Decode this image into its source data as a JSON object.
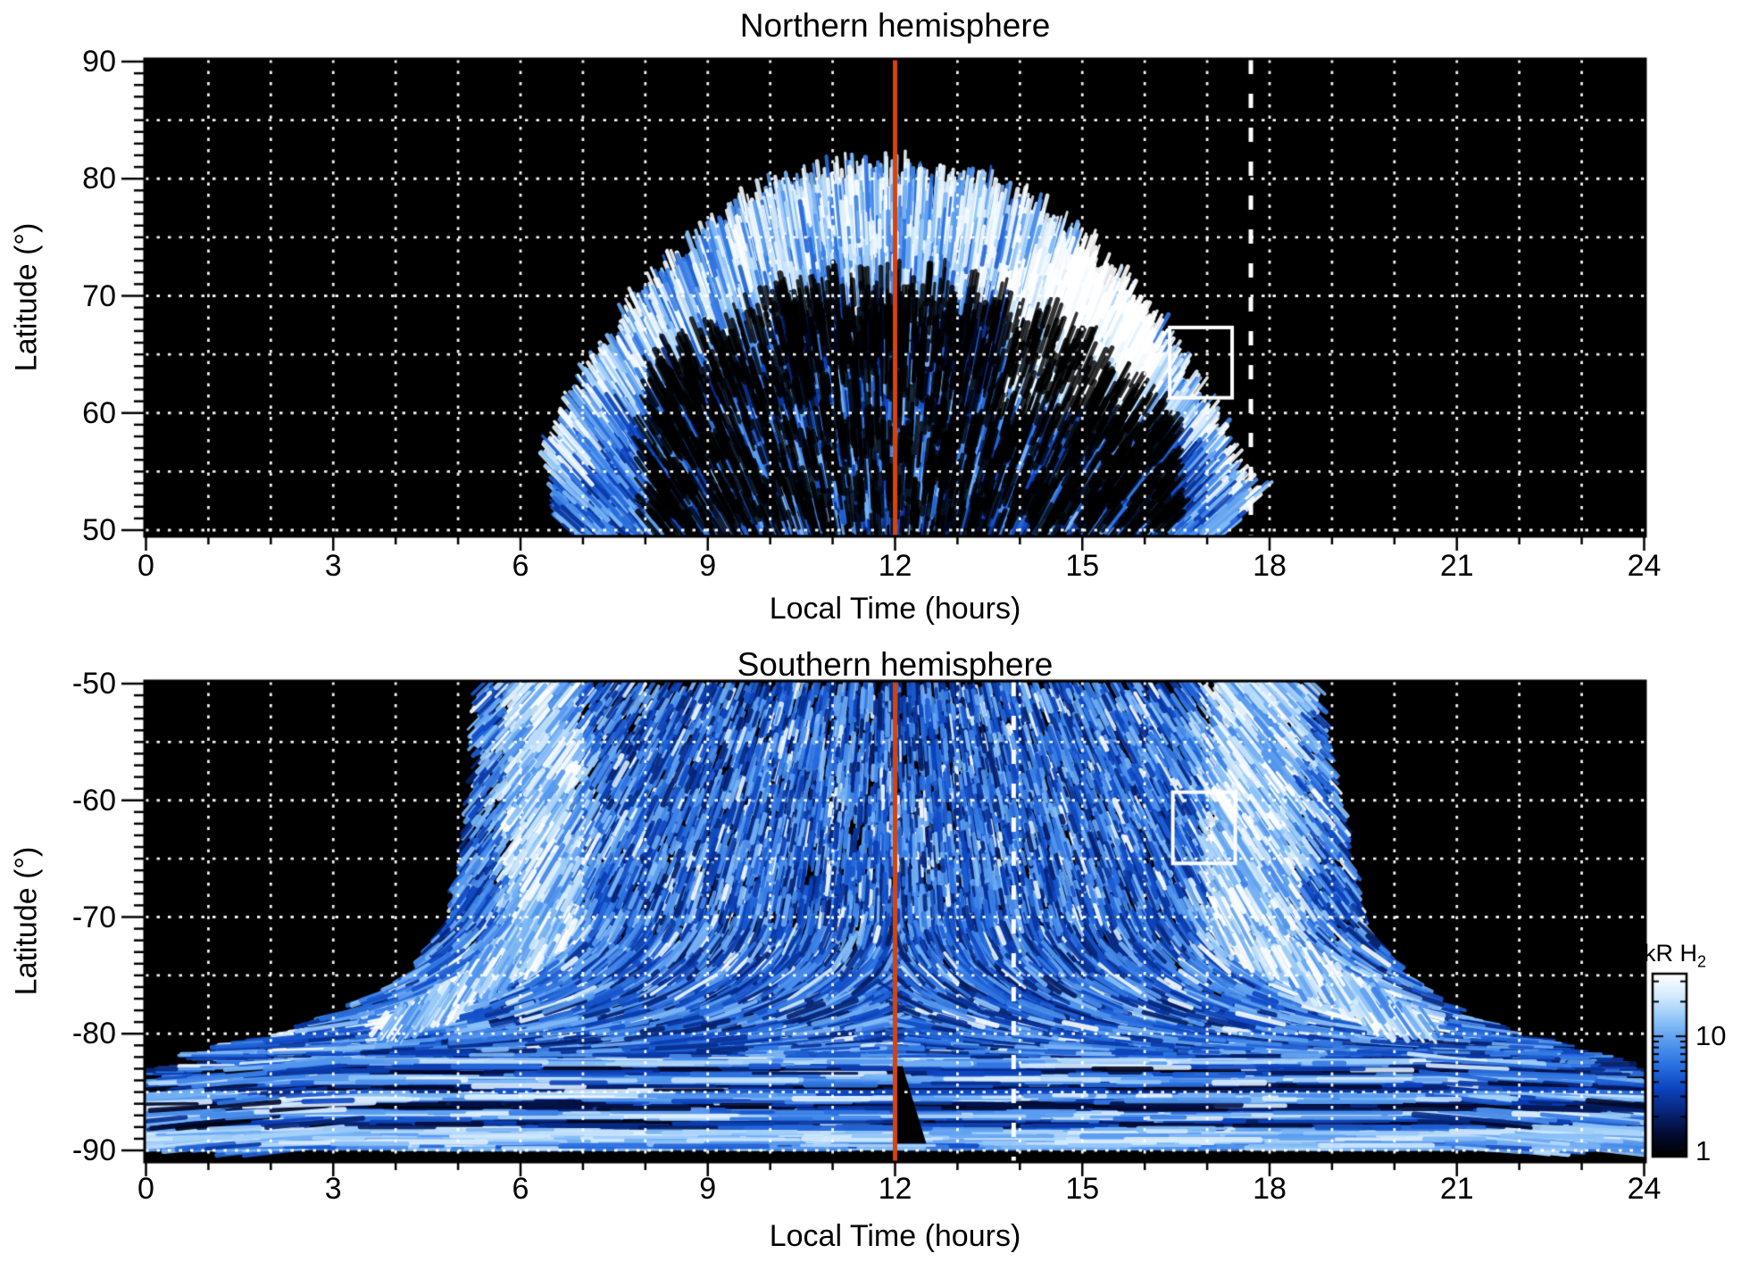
{
  "figure": {
    "background": "#ffffff",
    "frame_color": "#000000",
    "colorbar": {
      "label": "kR H",
      "label_sub": "2",
      "scale": "log",
      "range_kR": [
        0.9,
        35
      ],
      "ticks": [
        {
          "value": 10,
          "label": "10"
        },
        {
          "value": 1,
          "label": "1"
        }
      ],
      "minor_ticks": [
        2,
        3,
        4,
        5,
        6,
        7,
        8,
        9,
        20,
        30
      ],
      "gradient": [
        "#000000",
        "#020a30",
        "#07267a",
        "#0c44c0",
        "#2a70e0",
        "#5598ee",
        "#8fc4f8",
        "#d2e9fd",
        "#ffffff"
      ]
    }
  },
  "chart_data": [
    {
      "id": "north",
      "type": "heatmap",
      "title": "Northern hemisphere",
      "xlabel": "Local Time (hours)",
      "ylabel": "Latitude (°)",
      "xlim": [
        0,
        24
      ],
      "ylim": [
        50,
        90
      ],
      "xticks": [
        0,
        3,
        6,
        9,
        12,
        15,
        18,
        21,
        24
      ],
      "yticks": [
        90,
        80,
        70,
        60,
        50
      ],
      "x_minor_interval": 1,
      "y_minor_interval": 1,
      "grid": {
        "style": "dotted",
        "color": "#ffffff",
        "x_interval": 1,
        "y_interval": 5
      },
      "background": "#000000",
      "emission": {
        "units": "kR H2",
        "region": {
          "lt_center": 11.9,
          "lt_extent": [
            6.9,
            17.3
          ],
          "lat_base": 50,
          "lat_peak": 79
        },
        "bright_arc": {
          "lat_range": [
            69,
            78.5
          ],
          "lt_range": [
            8,
            16
          ],
          "intensity_kR": [
            10,
            32
          ]
        },
        "dark_gap": {
          "lt_range": [
            10.2,
            13.8
          ],
          "lat_range": [
            63,
            69
          ]
        },
        "bright_patch": {
          "lt": 14.9,
          "lat_range": [
            60,
            73
          ]
        },
        "diffuse_speckle_kR": [
          1,
          10
        ]
      },
      "annotations": {
        "noon_line": {
          "lt": 12,
          "color": "#d5430e",
          "style": "solid"
        },
        "dashed_line": {
          "lt": 17.7,
          "color": "#ffffff",
          "style": "dashed"
        },
        "roi_box": {
          "lt_range": [
            16.4,
            17.4
          ],
          "lat_range": [
            61.3,
            67.3
          ],
          "color": "#ffffff"
        }
      }
    },
    {
      "id": "south",
      "type": "heatmap",
      "title": "Southern hemisphere",
      "xlabel": "Local Time (hours)",
      "ylabel": "Latitude (°)",
      "xlim": [
        0,
        24
      ],
      "ylim": [
        -90,
        -50
      ],
      "xticks": [
        0,
        3,
        6,
        9,
        12,
        15,
        18,
        21,
        24
      ],
      "yticks": [
        -50,
        -60,
        -70,
        -80,
        -90
      ],
      "x_minor_interval": 1,
      "y_minor_interval": 1,
      "grid": {
        "style": "dotted",
        "color": "#ffffff",
        "x_interval": 1,
        "y_interval": 5
      },
      "background": "#000000",
      "emission": {
        "units": "kR H2",
        "fan_region": {
          "lat_range": [
            -83.5,
            -50
          ],
          "left_edge_lt_by_depth": {
            "depth_deg": [
              0,
              10,
              20,
              25,
              28,
              30,
              32,
              33.5
            ],
            "lt": [
              5.35,
              5.2,
              4.85,
              4.25,
              3.2,
              2.2,
              0.8,
              0.0
            ]
          },
          "right_edge_lt_by_depth": {
            "depth_deg": [
              0,
              10,
              20,
              25,
              28,
              30,
              32,
              33.5
            ],
            "lt": [
              18.75,
              19.1,
              19.5,
              20.15,
              20.9,
              21.8,
              23.2,
              24.0
            ]
          }
        },
        "dawn_band": {
          "lt": 6.35,
          "lat_range": [
            -79.5,
            -50
          ],
          "intensity_kR": [
            10,
            32
          ]
        },
        "dusk_band": {
          "lt": 17.75,
          "lat_range": [
            -79.5,
            -50
          ],
          "intensity_kR": [
            10,
            32
          ]
        },
        "polar_bands": {
          "lt_range": [
            0,
            24
          ],
          "lat_range": [
            -90,
            -82.3
          ]
        },
        "bright_polar_band": {
          "lat_range": [
            -89.6,
            -88.1
          ]
        },
        "dark_wedge": {
          "lt_range": [
            12.0,
            12.5
          ],
          "lat_range": [
            -89.4,
            -82.8
          ]
        },
        "diffuse_speckle_kR": [
          1,
          10
        ]
      },
      "annotations": {
        "noon_line": {
          "lt": 12,
          "color": "#d5430e",
          "style": "solid"
        },
        "dashed_line": {
          "lt": 13.9,
          "color": "#ffffff",
          "style": "dashed"
        },
        "roi_box": {
          "lt_range": [
            16.45,
            17.45
          ],
          "lat_range": [
            -65.4,
            -59.3
          ],
          "color": "#ffffff"
        }
      }
    }
  ]
}
